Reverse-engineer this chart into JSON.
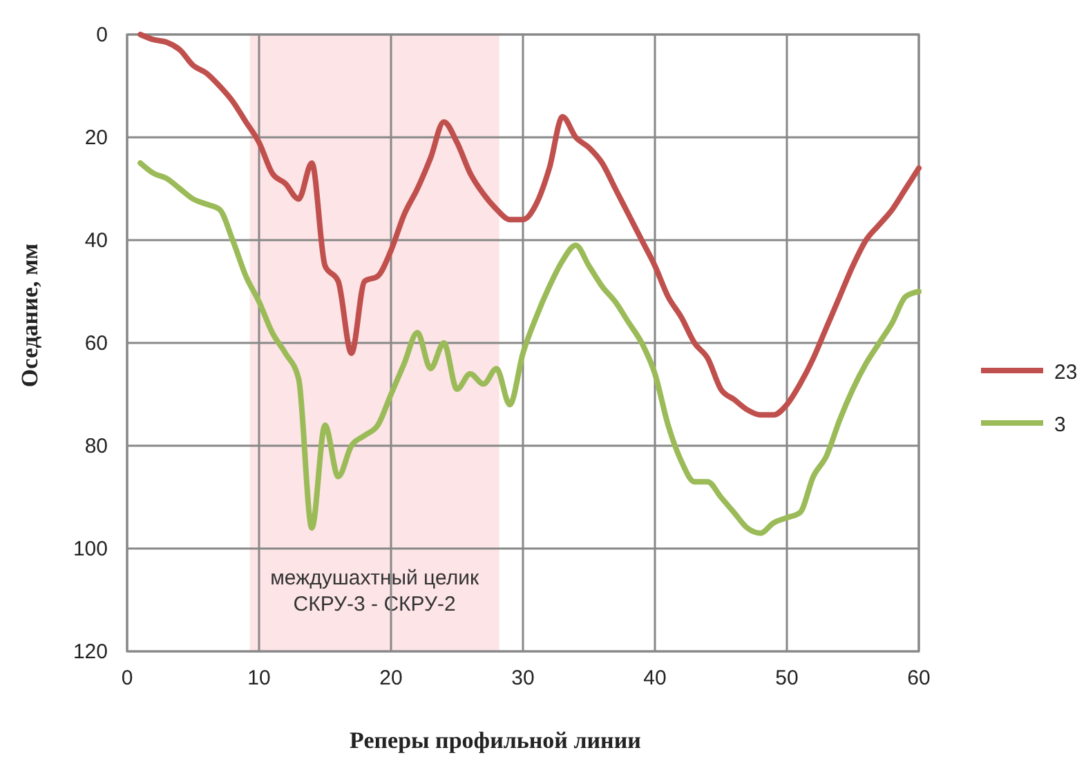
{
  "chart_data": {
    "type": "line",
    "xlabel": "Реперы профильной линии",
    "ylabel": "Оседание, мм",
    "x": [
      1,
      2,
      3,
      4,
      5,
      6,
      7,
      8,
      9,
      10,
      11,
      12,
      13,
      14,
      15,
      16,
      17,
      18,
      19,
      20,
      21,
      22,
      23,
      24,
      25,
      26,
      27,
      28,
      29,
      30,
      31,
      32,
      33,
      34,
      35,
      36,
      37,
      38,
      39,
      40,
      41,
      42,
      43,
      44,
      45,
      46,
      47,
      48,
      49,
      50,
      51,
      52,
      53,
      54,
      55,
      56,
      57,
      58,
      59,
      60
    ],
    "series": [
      {
        "name": "23",
        "color": "#c0504d",
        "values": [
          0,
          1,
          1.5,
          3,
          6,
          7.5,
          10,
          13,
          17,
          21,
          27,
          29,
          32,
          25,
          45,
          48,
          62,
          48,
          47,
          42,
          35,
          30,
          24,
          17,
          21,
          27,
          31,
          34,
          36,
          36,
          33,
          26,
          16,
          20,
          22,
          25,
          30,
          35,
          40,
          45,
          51,
          55,
          60,
          63,
          69,
          71,
          73,
          74,
          74,
          72,
          68,
          63,
          57,
          51,
          45,
          40,
          37,
          34,
          30,
          26
        ]
      },
      {
        "name": "3",
        "color": "#9bbb59",
        "values": [
          25,
          27,
          28,
          30,
          32,
          33,
          34,
          40,
          47,
          52,
          58,
          62,
          67,
          96,
          76,
          86,
          80,
          78,
          76,
          70,
          64,
          58,
          65,
          60,
          69,
          66,
          68,
          65,
          72,
          62,
          55,
          49,
          44,
          41,
          45,
          49,
          52,
          56,
          60,
          66,
          76,
          83,
          87,
          87,
          90,
          93,
          96,
          97,
          95,
          94,
          93,
          86,
          82,
          75,
          69,
          64,
          60,
          56,
          51,
          50
        ]
      }
    ],
    "xlim": [
      0,
      60
    ],
    "xticks": [
      0,
      10,
      20,
      30,
      40,
      50,
      60
    ],
    "ylim": [
      120,
      0
    ],
    "yticks": [
      0,
      20,
      40,
      60,
      80,
      100,
      120
    ],
    "bands": [
      {
        "axis": "x",
        "from": 9.3,
        "to": 28.2,
        "label": "междушахтный целик\nСКРУ-3 - СКРУ-2",
        "color": "#fde4e6"
      }
    ],
    "grid": true,
    "legend": "right",
    "marker": "none",
    "line_style": "solid"
  }
}
